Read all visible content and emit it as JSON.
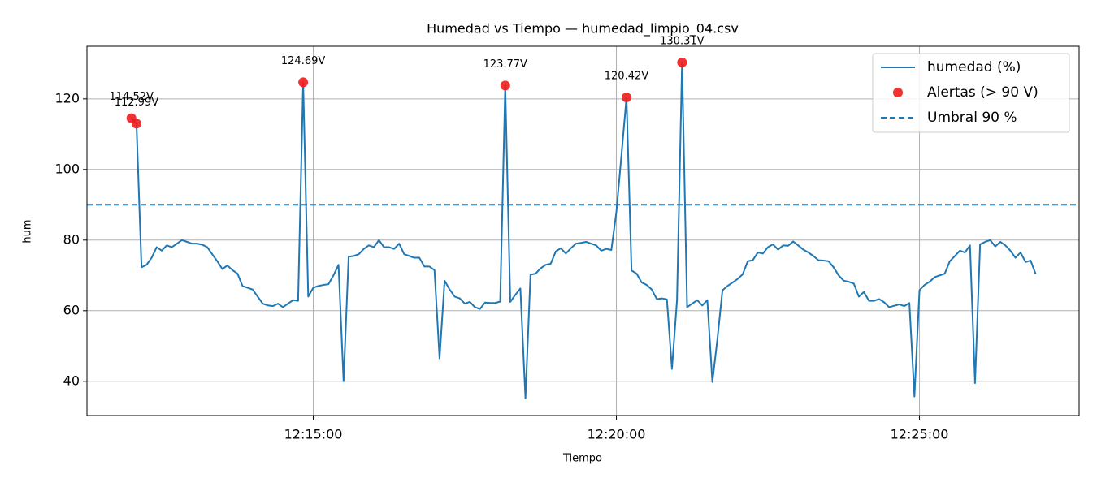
{
  "chart_data": {
    "type": "line",
    "title": "Humedad vs Tiempo — humedad_limpio_04.csv",
    "x_label": "Tiempo",
    "y_label": "hum",
    "xlim": [
      "12:11:16",
      "12:27:38"
    ],
    "xticks": [
      "12:15:00",
      "12:20:00",
      "12:25:00"
    ],
    "ylim": [
      30.3,
      134.9
    ],
    "yticks": [
      40,
      60,
      80,
      100,
      120
    ],
    "grid": true,
    "legend": "upper right",
    "series": [
      {
        "name": "humedad (%)",
        "type": "line",
        "color": "#1f77b4",
        "x": [
          "12:12:00",
          "12:12:05",
          "12:12:10",
          "12:12:15",
          "12:12:20",
          "12:12:25",
          "12:12:30",
          "12:12:35",
          "12:12:40",
          "12:12:45",
          "12:12:50",
          "12:12:55",
          "12:13:00",
          "12:13:05",
          "12:13:10",
          "12:13:15",
          "12:13:20",
          "12:13:25",
          "12:13:30",
          "12:13:35",
          "12:13:40",
          "12:13:45",
          "12:13:50",
          "12:13:55",
          "12:14:00",
          "12:14:05",
          "12:14:10",
          "12:14:15",
          "12:14:20",
          "12:14:25",
          "12:14:30",
          "12:14:35",
          "12:14:40",
          "12:14:45",
          "12:14:50",
          "12:14:55",
          "12:15:00",
          "12:15:05",
          "12:15:10",
          "12:15:15",
          "12:15:20",
          "12:15:25",
          "12:15:30",
          "12:15:35",
          "12:15:40",
          "12:15:45",
          "12:15:50",
          "12:15:55",
          "12:16:00",
          "12:16:05",
          "12:16:10",
          "12:16:15",
          "12:16:20",
          "12:16:25",
          "12:16:30",
          "12:16:35",
          "12:16:40",
          "12:16:45",
          "12:16:50",
          "12:16:55",
          "12:17:00",
          "12:17:05",
          "12:17:10",
          "12:17:15",
          "12:17:20",
          "12:17:25",
          "12:17:30",
          "12:17:35",
          "12:17:40",
          "12:17:45",
          "12:17:50",
          "12:17:55",
          "12:18:00",
          "12:18:05",
          "12:18:10",
          "12:18:15",
          "12:18:20",
          "12:18:25",
          "12:18:30",
          "12:18:35",
          "12:18:40",
          "12:18:45",
          "12:18:50",
          "12:18:55",
          "12:19:00",
          "12:19:05",
          "12:19:10",
          "12:19:15",
          "12:19:20",
          "12:19:25",
          "12:19:30",
          "12:19:35",
          "12:19:40",
          "12:19:45",
          "12:19:50",
          "12:19:55",
          "12:20:00",
          "12:20:05",
          "12:20:10",
          "12:20:15",
          "12:20:20",
          "12:20:25",
          "12:20:30",
          "12:20:35",
          "12:20:40",
          "12:20:45",
          "12:20:50",
          "12:20:55",
          "12:21:00",
          "12:21:05",
          "12:21:10",
          "12:21:15",
          "12:21:20",
          "12:21:25",
          "12:21:30",
          "12:21:35",
          "12:21:40",
          "12:21:45",
          "12:21:50",
          "12:21:55",
          "12:22:00",
          "12:22:05",
          "12:22:10",
          "12:22:15",
          "12:22:20",
          "12:22:25",
          "12:22:30",
          "12:22:35",
          "12:22:40",
          "12:22:45",
          "12:22:50",
          "12:22:55",
          "12:23:00",
          "12:23:05",
          "12:23:10",
          "12:23:15",
          "12:23:20",
          "12:23:25",
          "12:23:30",
          "12:23:35",
          "12:23:40",
          "12:23:45",
          "12:23:50",
          "12:23:55",
          "12:24:00",
          "12:24:05",
          "12:24:10",
          "12:24:15",
          "12:24:20",
          "12:24:25",
          "12:24:30",
          "12:24:35",
          "12:24:40",
          "12:24:45",
          "12:24:50",
          "12:24:55",
          "12:25:00",
          "12:25:05",
          "12:25:10",
          "12:25:15",
          "12:25:20",
          "12:25:25",
          "12:25:30",
          "12:25:35",
          "12:25:40",
          "12:25:45",
          "12:25:50",
          "12:25:55",
          "12:26:00",
          "12:26:05",
          "12:26:10",
          "12:26:15",
          "12:26:20",
          "12:26:25",
          "12:26:30",
          "12:26:35",
          "12:26:40",
          "12:26:45",
          "12:26:50",
          "12:26:55"
        ],
        "values": [
          114.52,
          112.99,
          72.3,
          73,
          75,
          78,
          77,
          78.5,
          78,
          79,
          80,
          79.5,
          79,
          79,
          78.7,
          78,
          76,
          74,
          71.8,
          72.8,
          71.5,
          70.5,
          67,
          66.5,
          66,
          64,
          62,
          61.5,
          61.3,
          62,
          61,
          62,
          63,
          62.8,
          124.69,
          64,
          66.5,
          67,
          67.3,
          67.5,
          70,
          73,
          40,
          75.3,
          75.5,
          76,
          77.5,
          78.5,
          78,
          80,
          78,
          78,
          77.5,
          79,
          76,
          75.5,
          75,
          75,
          72.5,
          72.5,
          71.5,
          46.5,
          68.5,
          66,
          64,
          63.5,
          62,
          62.5,
          61,
          60.5,
          62.3,
          62.2,
          62.2,
          62.6,
          123.77,
          62.5,
          64.5,
          66.3,
          35.2,
          70.2,
          70.5,
          72,
          73,
          73.3,
          76.8,
          77.7,
          76.2,
          77.7,
          79,
          79.2,
          79.5,
          79,
          78.5,
          77,
          77.5,
          77.2,
          88,
          104,
          120.42,
          71.4,
          70.5,
          68,
          67.3,
          66,
          63.3,
          63.5,
          63.2,
          43.5,
          63,
          130.31,
          61,
          62,
          63,
          61.5,
          63,
          39.8,
          52,
          65.8,
          67,
          68,
          69,
          70.3,
          74,
          74.3,
          76.5,
          76.2,
          78,
          78.8,
          77.3,
          78.5,
          78.4,
          79.6,
          78.5,
          77.3,
          76.5,
          75.5,
          74.3,
          74.2,
          74,
          72.3,
          70,
          68.5,
          68.2,
          67.7,
          64,
          65.3,
          62.8,
          62.8,
          63.3,
          62.4,
          61,
          61.4,
          61.8,
          61.3,
          62.2,
          35.7,
          65.8,
          67.3,
          68.2,
          69.5,
          70,
          70.5,
          74,
          75.5,
          77,
          76.5,
          78.5,
          39.5,
          78.8,
          79.5,
          80,
          78.2,
          79.5,
          78.5,
          77,
          75,
          76.5,
          73.8,
          74.2,
          70.4
        ]
      },
      {
        "name": "Alertas (> 90 V)",
        "type": "scatter",
        "color": "#ee1c1c",
        "x": [
          "12:12:00",
          "12:12:05",
          "12:14:50",
          "12:18:10",
          "12:20:10",
          "12:21:05"
        ],
        "values": [
          114.52,
          112.99,
          124.69,
          123.77,
          120.42,
          130.31
        ],
        "value_labels": [
          "114.52V",
          "112.99V",
          "124.69V",
          "123.77V",
          "120.42V",
          "130.31V"
        ]
      }
    ],
    "threshold": {
      "name": "Umbral 90 %",
      "value": 90,
      "color": "#1f77b4"
    }
  }
}
